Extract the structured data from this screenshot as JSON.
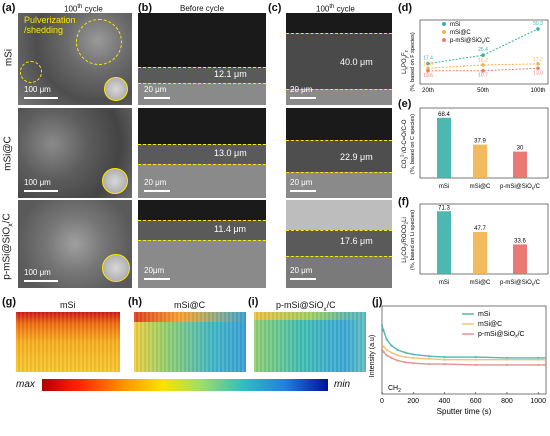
{
  "panels": {
    "a": "(a)",
    "b": "(b)",
    "c": "(c)",
    "d": "(d)",
    "e": "(e)",
    "f": "(f)",
    "g": "(g)",
    "h": "(h)",
    "i": "(i)",
    "j": "(j)"
  },
  "headers": {
    "a_cycle": "100",
    "a_cycle_sup": "th",
    "a_cycle_rest": " cycle",
    "b": "Before cycle",
    "c_cycle": "100",
    "c_cycle_sup": "th",
    "c_cycle_rest": " cycle"
  },
  "rows": [
    "mSi",
    "mSi@C",
    "p-mSi@SiO",
    "x",
    "/C"
  ],
  "annotation": "Pulverization\n/shedding",
  "annotation_l1": "Pulverization",
  "annotation_l2": "/shedding",
  "sem_scale": [
    "100 μm",
    "100 μm",
    "100 μm"
  ],
  "cross_scale": [
    "20 μm",
    "20 μm",
    "20μm",
    "20 μm",
    "20 μm",
    "20 μm"
  ],
  "thickness_before": [
    "12.1 μm",
    "13.0 μm",
    "11.4 μm"
  ],
  "thickness_after": [
    "40.0 μm",
    "22.9 μm",
    "17.6 μm"
  ],
  "heatmaps": {
    "g": "mSi",
    "h": "mSi@C",
    "i_main": "p-mSi@SiO",
    "i_sub": "x",
    "i_rest": "/C",
    "cbar_max": "max",
    "cbar_min": "min"
  },
  "chart_data": [
    {
      "panel": "d",
      "type": "line",
      "ylabel": "LiₓPOᵧFz (%, based on F species)",
      "categories": [
        "20th",
        "50th",
        "100th"
      ],
      "series": [
        {
          "name": "mSi",
          "values": [
            17.4,
            25.4,
            50.3
          ],
          "color": "#3ab0a8"
        },
        {
          "name": "mSi@C",
          "values": [
            13.0,
            16.2,
            17.2
          ],
          "color": "#f2b24c"
        },
        {
          "name": "p-mSi@SiOx/C",
          "values": [
            10.6,
            10.7,
            13.0
          ],
          "color": "#e88070"
        }
      ],
      "labels": [
        [
          "17.4",
          "25.4",
          "50.3"
        ],
        [
          "13.0",
          "16.2",
          "17.2"
        ],
        [
          "10.6",
          "10.7",
          "13.0"
        ]
      ],
      "legend": [
        "mSi",
        "mSi@C",
        "p-mSi@SiO",
        "x",
        "/C"
      ]
    },
    {
      "panel": "e",
      "type": "bar",
      "ylabel": "CO₃²⁻/O-C=O/C-O (%, based on C species)",
      "categories": [
        "mSi",
        "mSi@C",
        "p-mSi@SiOx/C"
      ],
      "values": [
        68.4,
        37.9,
        30
      ],
      "labels": [
        "68.4",
        "37.9",
        "30"
      ],
      "colors": [
        "#3ab0a8",
        "#f2b24c",
        "#e86a66"
      ],
      "xlabels": [
        "mSi",
        "mSi@C",
        "p-mSi@SiO",
        "x",
        "/C"
      ]
    },
    {
      "panel": "f",
      "type": "bar",
      "ylabel": "Li₂CO₃/ROCO₂Li (%, based on Li species)",
      "categories": [
        "mSi",
        "mSi@C",
        "p-mSi@SiOx/C"
      ],
      "values": [
        71.3,
        47.7,
        33.6
      ],
      "labels": [
        "71.3",
        "47.7",
        "33.6"
      ],
      "colors": [
        "#3ab0a8",
        "#f2b24c",
        "#e86a66"
      ],
      "xlabels": [
        "mSi",
        "mSi@C",
        "p-mSi@SiO",
        "x",
        "/C"
      ]
    },
    {
      "panel": "j",
      "type": "line",
      "xlabel": "Sputter time (s)",
      "ylabel": "Intensity (a.u)",
      "annotation": "CH",
      "annotation_sub": "2",
      "xlim": [
        0,
        1050
      ],
      "xticks": [
        "0",
        "200",
        "400",
        "600",
        "800",
        "1000"
      ],
      "legend": [
        "mSi",
        "mSi@C",
        "p-mSi@SiO",
        "x",
        "/C"
      ],
      "series": [
        {
          "name": "mSi",
          "color": "#4fb8b0",
          "x": [
            0,
            10,
            30,
            60,
            100,
            150,
            200,
            300,
            400,
            600,
            800,
            1000,
            1040
          ],
          "y": [
            0.78,
            0.72,
            0.62,
            0.55,
            0.5,
            0.47,
            0.45,
            0.43,
            0.42,
            0.42,
            0.41,
            0.41,
            0.41
          ]
        },
        {
          "name": "mSi@C",
          "color": "#f2c27a",
          "x": [
            0,
            10,
            30,
            60,
            100,
            150,
            200,
            300,
            400,
            600,
            800,
            1000,
            1040
          ],
          "y": [
            0.56,
            0.54,
            0.5,
            0.47,
            0.44,
            0.42,
            0.41,
            0.4,
            0.39,
            0.39,
            0.39,
            0.39,
            0.39
          ]
        },
        {
          "name": "p-mSi@SiOx/C",
          "color": "#e89090",
          "x": [
            0,
            10,
            30,
            60,
            100,
            150,
            200,
            300,
            400,
            600,
            800,
            1000,
            1040
          ],
          "y": [
            0.5,
            0.48,
            0.44,
            0.41,
            0.38,
            0.36,
            0.35,
            0.34,
            0.34,
            0.33,
            0.33,
            0.33,
            0.33
          ]
        }
      ]
    }
  ]
}
